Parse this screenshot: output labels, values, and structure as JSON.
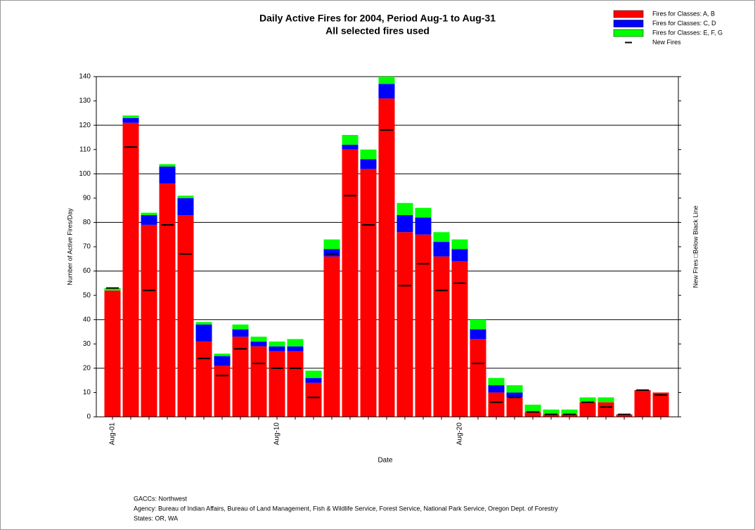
{
  "chart_data": {
    "type": "stacked_bar",
    "title": "Daily Active Fires for 2004, Period Aug-1 to Aug-31",
    "subtitle": "All selected fires used",
    "x_label": "Date",
    "y_label": "Number of Active Fires/Day",
    "y2_label": "New Fires □Below Black Line",
    "categories": [
      "Aug-01",
      null,
      null,
      null,
      null,
      null,
      null,
      null,
      null,
      "Aug-10",
      null,
      null,
      null,
      null,
      null,
      null,
      null,
      null,
      null,
      "Aug-20",
      null,
      null,
      null,
      null,
      null,
      null,
      null,
      null,
      null,
      null,
      null
    ],
    "series": [
      {
        "name": "Fires for Classes: A, B",
        "color": "#ff0000",
        "values": [
          52,
          121,
          79,
          96,
          83,
          31,
          21,
          33,
          29,
          27,
          27,
          14,
          66,
          110,
          102,
          131,
          76,
          75,
          66,
          64,
          32,
          10,
          8,
          2,
          1,
          1,
          6,
          6,
          1,
          11,
          10
        ]
      },
      {
        "name": "Fires for Classes: C, D",
        "color": "#0000ff",
        "values": [
          0,
          2,
          4,
          7,
          7,
          7,
          4,
          3,
          2,
          2,
          2,
          2,
          3,
          2,
          4,
          6,
          7,
          7,
          6,
          5,
          4,
          3,
          2,
          0,
          0,
          0,
          0,
          0,
          0,
          0,
          0
        ]
      },
      {
        "name": "Fires for Classes: E, F, G",
        "color": "#00ff00",
        "values": [
          1,
          1,
          1,
          1,
          1,
          1,
          1,
          2,
          2,
          2,
          3,
          3,
          4,
          4,
          4,
          3,
          5,
          4,
          4,
          4,
          4,
          3,
          3,
          3,
          2,
          2,
          2,
          2,
          0,
          0,
          0
        ]
      },
      {
        "name": "New Fires",
        "color": "#000000",
        "kind": "marker",
        "values": [
          53,
          111,
          52,
          79,
          67,
          24,
          17,
          28,
          22,
          20,
          20,
          8,
          67,
          91,
          79,
          118,
          54,
          63,
          52,
          55,
          22,
          6,
          8,
          2,
          1,
          1,
          6,
          4,
          1,
          11,
          9
        ]
      }
    ],
    "ylim": [
      0,
      140
    ],
    "yticks": [
      0,
      10,
      20,
      30,
      40,
      50,
      60,
      70,
      80,
      90,
      100,
      110,
      120,
      130,
      140
    ],
    "ygrid": [
      20,
      40,
      60,
      80,
      100,
      120,
      140
    ],
    "legend": "upper right"
  },
  "footer": [
    "GACCs: Northwest",
    "Agency: Bureau of Indian Affairs, Bureau of Land Management, Fish & Wildlife Service, Forest Service, National Park Service, Oregon Dept. of Forestry",
    "States: OR, WA"
  ]
}
